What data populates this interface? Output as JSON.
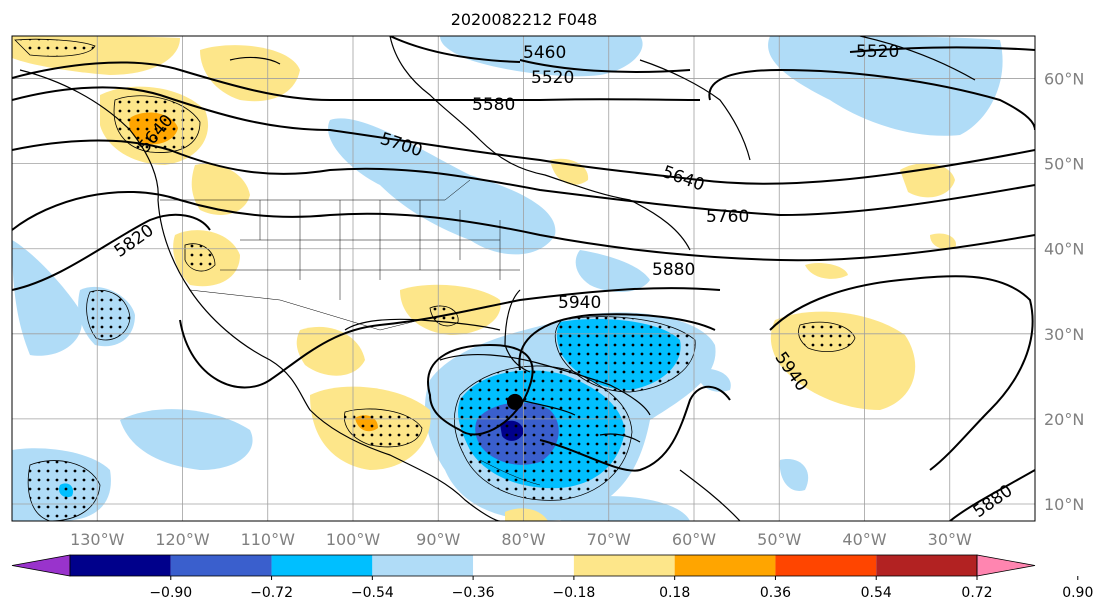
{
  "title": "2020082212 F048",
  "map": {
    "lon_range": [
      -140,
      -20
    ],
    "lat_range": [
      8,
      65
    ],
    "lon_ticks": [
      "130°W",
      "120°W",
      "110°W",
      "100°W",
      "90°W",
      "80°W",
      "70°W",
      "60°W",
      "50°W",
      "40°W",
      "30°W"
    ],
    "lat_ticks": [
      "60°N",
      "50°N",
      "40°N",
      "30°N",
      "20°N",
      "10°N"
    ],
    "gridlines": true,
    "contour_labels": [
      "5460",
      "5520",
      "5520",
      "5580",
      "5640",
      "5700",
      "5640",
      "5760",
      "5820",
      "5880",
      "5940",
      "5940",
      "5880"
    ],
    "storm_marker": {
      "lon": -81,
      "lat": 22
    }
  },
  "colorbar": {
    "ticks": [
      "−0.90",
      "−0.72",
      "−0.54",
      "−0.36",
      "−0.18",
      "0.18",
      "0.36",
      "0.54",
      "0.72",
      "0.90"
    ],
    "colors": [
      "#9933cc",
      "#00008b",
      "#3a5fcd",
      "#00bfff",
      "#b0dcf7",
      "#ffffff",
      "#fde68a",
      "#ffa500",
      "#ff4500",
      "#b22222",
      "#ff85b0"
    ],
    "extend": "both"
  }
}
